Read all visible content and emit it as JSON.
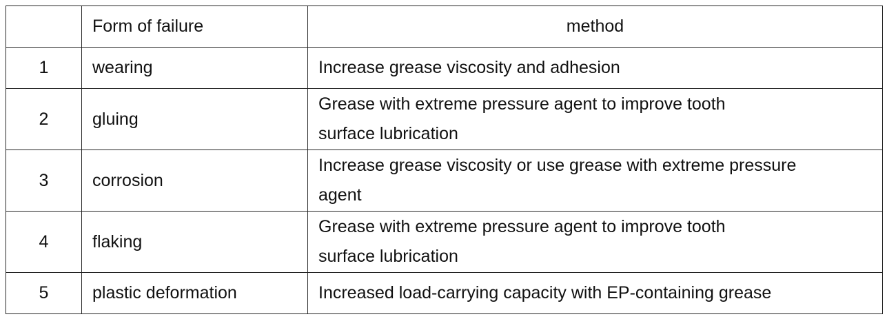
{
  "table": {
    "header": [
      "Form of failure",
      "method"
    ],
    "rows": [
      [
        "1",
        "wearing",
        [
          "Increase grease viscosity and adhesion"
        ]
      ],
      [
        "2",
        "gluing",
        [
          "Grease with extreme pressure agent to improve tooth",
          "surface lubrication"
        ]
      ],
      [
        "3",
        "corrosion",
        [
          "Increase grease viscosity or use grease with extreme pressure",
          "agent"
        ]
      ],
      [
        "4",
        "flaking",
        [
          "Grease with extreme pressure agent to improve tooth",
          "surface lubrication"
        ]
      ],
      [
        "5",
        "plastic deformation",
        [
          "Increased load-carrying capacity with EP-containing grease"
        ]
      ]
    ]
  }
}
